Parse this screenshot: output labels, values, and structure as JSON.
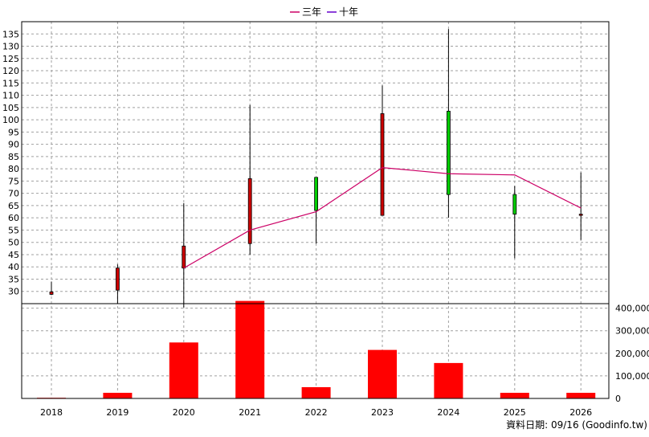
{
  "legend": [
    {
      "label": "三年",
      "color": "#cc0066"
    },
    {
      "label": "十年",
      "color": "#6600cc"
    }
  ],
  "footer": {
    "note": "資料日期: 09/16  (Goodinfo.tw)"
  },
  "chart_data": [
    {
      "type": "candlestick",
      "x": [
        "2018",
        "2019",
        "2020",
        "2021",
        "2022",
        "2023",
        "2024",
        "2025",
        "2026"
      ],
      "ohlc": [
        {
          "x": "2018",
          "open": 29.8,
          "high": 34.0,
          "low": 28.5,
          "close": 28.8
        },
        {
          "x": "2019",
          "open": 39.5,
          "high": 41.0,
          "low": 25.0,
          "close": 30.5
        },
        {
          "x": "2020",
          "open": 48.5,
          "high": 66.0,
          "low": 23.5,
          "close": 39.5
        },
        {
          "x": "2021",
          "open": 76.0,
          "high": 106.0,
          "low": 45.0,
          "close": 49.5
        },
        {
          "x": "2022",
          "open": 63.0,
          "high": 76.5,
          "low": 49.5,
          "close": 76.5
        },
        {
          "x": "2023",
          "open": 102.5,
          "high": 114.0,
          "low": 61.0,
          "close": 61.0
        },
        {
          "x": "2024",
          "open": 69.5,
          "high": 137.0,
          "low": 60.0,
          "close": 103.5
        },
        {
          "x": "2025",
          "open": 61.5,
          "high": 73.0,
          "low": 43.5,
          "close": 69.5
        },
        {
          "x": "2026",
          "open": 61.5,
          "high": 78.5,
          "low": 51.0,
          "close": 61.0
        }
      ],
      "up_color": "#00cc00",
      "down_color": "#cc0000",
      "series": [
        {
          "name": "三年",
          "color": "#cc0066",
          "points": [
            {
              "x": "2020",
              "y": 39.5
            },
            {
              "x": "2021",
              "y": 55.0
            },
            {
              "x": "2022",
              "y": 62.5
            },
            {
              "x": "2023",
              "y": 80.5
            },
            {
              "x": "2024",
              "y": 78.0
            },
            {
              "x": "2025",
              "y": 77.5
            },
            {
              "x": "2026",
              "y": 64.0
            }
          ]
        }
      ],
      "yticks": [
        30,
        35,
        40,
        45,
        50,
        55,
        60,
        65,
        70,
        75,
        80,
        85,
        90,
        95,
        100,
        105,
        110,
        115,
        120,
        125,
        130,
        135
      ],
      "ylim": [
        25,
        140
      ],
      "grid": true,
      "legend_position": "top-center"
    },
    {
      "type": "bar",
      "categories": [
        "2018",
        "2019",
        "2020",
        "2021",
        "2022",
        "2023",
        "2024",
        "2025",
        "2026"
      ],
      "values": [
        3000,
        25000,
        248000,
        432000,
        50000,
        215000,
        157000,
        25000,
        25000
      ],
      "color": "#ff0000",
      "yticks": [
        "0",
        "100,000",
        "200,000",
        "300,000",
        "400,000"
      ],
      "ylim": [
        0,
        420000
      ],
      "axis_position": "right",
      "grid": true
    }
  ]
}
